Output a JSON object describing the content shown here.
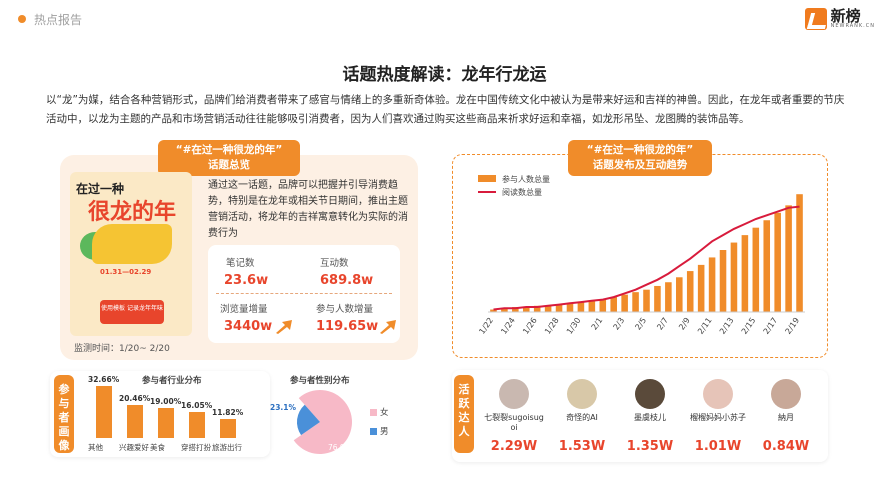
{
  "header": {
    "crumb": "热点报告",
    "logo_name": "新榜",
    "logo_sub": "NEWRANK.CN"
  },
  "title": "话题热度解读：龙年行龙运",
  "intro": "以“龙”为媒，结合各种营销形式，品牌们给消费者带来了感官与情绪上的多重新奇体验。龙在中国传统文化中被认为是带来好运和吉祥的神兽。因此，在龙年或者重要的节庆活动中，以龙为主题的产品和市场营销活动往往能够吸引消费者，因为人们喜欢通过购买这些商品来祈求好运和幸福，如龙形吊坠、龙图腾的装饰品等。",
  "summary": {
    "tag_line1": "“#在过一种很龙的年”",
    "tag_line2": "话题总览",
    "poster": {
      "line1": "在过一种",
      "line2": "很龙的年",
      "date": "01.31—02.29",
      "pill": "使用模板 记录龙年年味"
    },
    "desc": "通过这一话题，品牌可以把握并引导消费趋势，特别是在龙年或相关节日期间，推出主题营销活动，将龙年的吉祥寓意转化为实际的消费行为",
    "monitor": "监测时间：1/20~ 2/20",
    "stats": [
      {
        "label": "笔记数",
        "value": "23.6w"
      },
      {
        "label": "互动数",
        "value": "689.8w"
      },
      {
        "label": "浏览量增量",
        "value": "3440w"
      },
      {
        "label": "参与人数增量",
        "value": "119.65w"
      }
    ]
  },
  "trend": {
    "tag_line1": "“#在过一种很龙的年”",
    "tag_line2": "话题发布及互动趋势"
  },
  "chart_data": [
    {
      "type": "bar",
      "title": "",
      "legend": [
        "参与人数总量",
        "阅读数总量"
      ],
      "legend_position": "top-left",
      "categories": [
        "1/22",
        "1/23",
        "1/24",
        "1/25",
        "1/26",
        "1/27",
        "1/28",
        "1/29",
        "1/30",
        "1/31",
        "2/1",
        "2/2",
        "2/3",
        "2/4",
        "2/5",
        "2/6",
        "2/7",
        "2/8",
        "2/9",
        "2/10",
        "2/11",
        "2/12",
        "2/13",
        "2/14",
        "2/15",
        "2/16",
        "2/17",
        "2/18",
        "2/19"
      ],
      "tick_labels": [
        "1/22",
        "1/24",
        "1/26",
        "1/28",
        "1/30",
        "2/1",
        "2/3",
        "2/5",
        "2/7",
        "2/9",
        "2/11",
        "2/13",
        "2/15",
        "2/17",
        "2/19"
      ],
      "series": [
        {
          "name": "参与人数总量",
          "type": "bar",
          "color": "#f08c2a",
          "values": [
            2,
            3,
            4,
            4,
            5,
            5,
            6,
            7,
            8,
            9,
            10,
            12,
            14,
            16,
            18,
            21,
            24,
            28,
            33,
            38,
            44,
            50,
            56,
            62,
            68,
            74,
            80,
            86,
            95
          ]
        },
        {
          "name": "阅读数总量",
          "type": "line",
          "color": "#d81b3c",
          "values": [
            2,
            3,
            3,
            4,
            4,
            5,
            6,
            7,
            8,
            9,
            10,
            12,
            15,
            18,
            22,
            26,
            31,
            37,
            43,
            50,
            57,
            62,
            67,
            71,
            75,
            78,
            81,
            84,
            85
          ]
        }
      ],
      "ylim": [
        0,
        100
      ],
      "grid": false
    },
    {
      "type": "bar",
      "title": "参与者行业分布",
      "categories": [
        "其他",
        "兴趣爱好",
        "美食",
        "穿搭打扮",
        "旅游出行"
      ],
      "values": [
        32.66,
        20.46,
        19.0,
        16.05,
        11.82
      ],
      "labels": [
        "32.66%",
        "20.46%",
        "19.00%",
        "16.05%",
        "11.82%"
      ],
      "color": "#f08c2a"
    },
    {
      "type": "pie",
      "title": "参与者性别分布",
      "categories": [
        "女",
        "男"
      ],
      "values": [
        76.9,
        23.1
      ],
      "labels": [
        "76.9%",
        "23.1%"
      ],
      "colors": [
        "#f7b9c7",
        "#4a90d9"
      ],
      "legend_position": "right"
    }
  ],
  "audience": {
    "side_label": "参与者画像"
  },
  "kol": {
    "side_label": "活跃达人",
    "items": [
      {
        "name": "七裂裂sugoisugoi",
        "value": "2.29W",
        "color": "#c9b8b0"
      },
      {
        "name": "奇怪的AI",
        "value": "1.53W",
        "color": "#d8c8a8"
      },
      {
        "name": "墨虞枝儿",
        "value": "1.35W",
        "color": "#5a4a3a"
      },
      {
        "name": "榴榴妈妈小苏子",
        "value": "1.01W",
        "color": "#e6c4b8"
      },
      {
        "name": "納月",
        "value": "0.84W",
        "color": "#c8a898"
      }
    ]
  }
}
